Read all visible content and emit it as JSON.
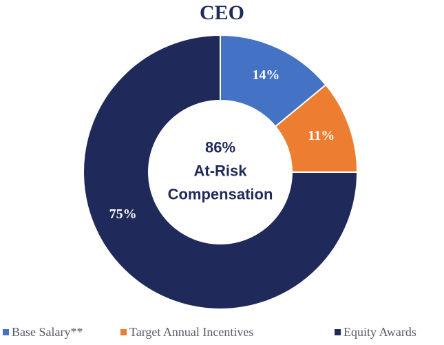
{
  "chart_data": {
    "type": "pie",
    "title": "CEO",
    "categories": [
      "Base Salary**",
      "Target Annual Incentives",
      "Equity Awards"
    ],
    "values": [
      14,
      11,
      75
    ],
    "value_labels": [
      "14%",
      "11%",
      "75%"
    ],
    "colors": [
      "#4472c4",
      "#ed7d31",
      "#1f2a5a"
    ],
    "donut": true,
    "legend_position": "bottom",
    "center_text": [
      "86%",
      "At-Risk",
      "Compensation"
    ]
  }
}
